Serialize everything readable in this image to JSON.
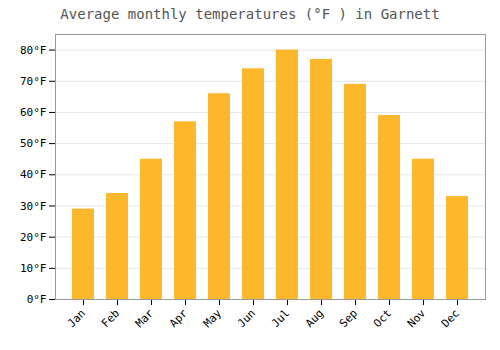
{
  "chart_data": {
    "type": "bar",
    "title": "Average monthly temperatures (°F ) in Garnett",
    "categories": [
      "Jan",
      "Feb",
      "Mar",
      "Apr",
      "May",
      "Jun",
      "Jul",
      "Aug",
      "Sep",
      "Oct",
      "Nov",
      "Dec"
    ],
    "values": [
      29,
      34,
      45,
      57,
      66,
      74,
      80,
      77,
      69,
      59,
      45,
      33
    ],
    "color": "#FDB72A",
    "ylim": [
      0,
      85
    ],
    "yticks": [
      {
        "value": 0,
        "label": "0°F"
      },
      {
        "value": 10,
        "label": "10°F"
      },
      {
        "value": 20,
        "label": "20°F"
      },
      {
        "value": 30,
        "label": "30°F"
      },
      {
        "value": 40,
        "label": "40°F"
      },
      {
        "value": 50,
        "label": "50°F"
      },
      {
        "value": 60,
        "label": "60°F"
      },
      {
        "value": 70,
        "label": "70°F"
      },
      {
        "value": 80,
        "label": "80°F"
      }
    ],
    "grid": true
  }
}
